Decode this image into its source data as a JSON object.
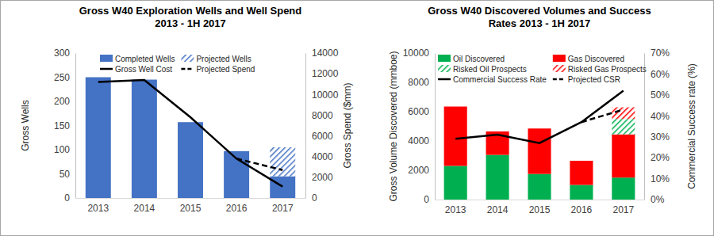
{
  "chart_data": [
    {
      "type": "bar",
      "title": "Gross W40 Exploration Wells and Well Spend 2013 - 1H 2017",
      "categories": [
        "2013",
        "2014",
        "2015",
        "2016",
        "2017"
      ],
      "y_label": "Gross Wells",
      "y2_label": "Gross Spend ($mm)",
      "ylim": [
        0,
        300
      ],
      "yticks": [
        0,
        50,
        100,
        150,
        200,
        250,
        300
      ],
      "y2lim": [
        0,
        14000
      ],
      "y2ticks": [
        0,
        2000,
        4000,
        6000,
        8000,
        10000,
        12000,
        14000
      ],
      "stacked": true,
      "legend": "top",
      "series": [
        {
          "name": "Completed Wells",
          "type": "bar",
          "color": "#4472C4",
          "values": [
            250,
            245,
            157,
            97,
            45
          ]
        },
        {
          "name": "Projected Wells",
          "type": "bar",
          "color": "#4472C4",
          "line_style": "hatched",
          "values": [
            null,
            null,
            null,
            null,
            60
          ]
        },
        {
          "name": "Gross Well Cost",
          "type": "line",
          "color": "#000000",
          "line_style": "solid",
          "axis": "y2",
          "values": [
            11200,
            11400,
            7800,
            3800,
            1100
          ]
        },
        {
          "name": "Projected Spend",
          "type": "line",
          "color": "#000000",
          "line_style": "dashed",
          "axis": "y2",
          "values": [
            null,
            null,
            null,
            3800,
            2700
          ]
        }
      ]
    },
    {
      "type": "bar",
      "title": "Gross W40 Discovered Volumes and Success Rates 2013 - 1H 2017",
      "categories": [
        "2013",
        "2014",
        "2015",
        "2016",
        "2017"
      ],
      "y_label": "Gross Volume Discovered (mmboe)",
      "y2_label": "Commercial Success rate (%)",
      "ylim": [
        0,
        10000
      ],
      "yticks": [
        0,
        2000,
        4000,
        6000,
        8000,
        10000
      ],
      "y2lim": [
        0,
        70
      ],
      "y2ticks": [
        {
          "value": 0,
          "label": "0%"
        },
        {
          "value": 10,
          "label": "10%"
        },
        {
          "value": 20,
          "label": "20%"
        },
        {
          "value": 30,
          "label": "30%"
        },
        {
          "value": 40,
          "label": "40%"
        },
        {
          "value": 50,
          "label": "50%"
        },
        {
          "value": 60,
          "label": "60%"
        },
        {
          "value": 70,
          "label": "70%"
        }
      ],
      "stacked": true,
      "legend": "top",
      "series": [
        {
          "name": "Oil Discovered",
          "type": "bar",
          "color": "#00B050",
          "values": [
            2300,
            3050,
            1750,
            1000,
            1500
          ]
        },
        {
          "name": "Gas Discovered",
          "type": "bar",
          "color": "#FF0000",
          "values": [
            4050,
            1600,
            3100,
            1650,
            2950
          ]
        },
        {
          "name": "Risked Oil Prospects",
          "type": "bar",
          "color": "#00B050",
          "line_style": "hatched",
          "values": [
            null,
            null,
            null,
            null,
            1050
          ]
        },
        {
          "name": "Risked Gas Prospects",
          "type": "bar",
          "color": "#FF0000",
          "line_style": "hatched",
          "values": [
            null,
            null,
            null,
            null,
            800
          ]
        },
        {
          "name": "Commercial Success Rate",
          "type": "line",
          "color": "#000000",
          "line_style": "solid",
          "axis": "y2",
          "values": [
            29,
            31,
            27,
            37,
            52
          ]
        },
        {
          "name": "Projected CSR",
          "type": "line",
          "color": "#000000",
          "line_style": "dashed",
          "axis": "y2",
          "values": [
            null,
            null,
            null,
            37,
            43
          ]
        }
      ]
    }
  ]
}
